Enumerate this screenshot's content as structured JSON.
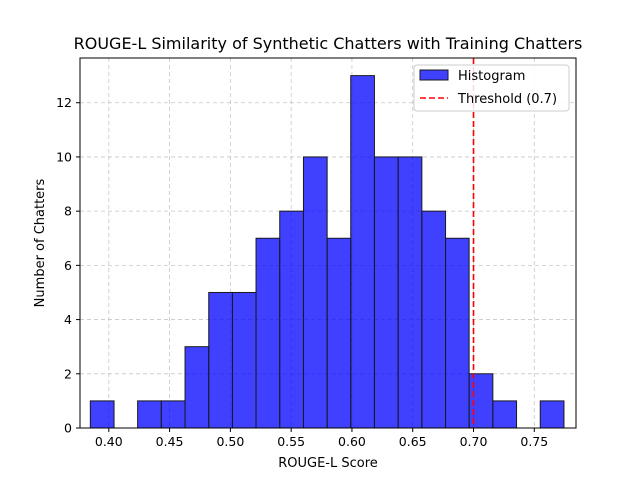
{
  "chart_data": {
    "type": "bar",
    "title": "ROUGE-L Similarity of Synthetic Chatters with Training Chatters",
    "xlabel": "ROUGE-L Score",
    "ylabel": "Number of Chatters",
    "xlim": [
      0.3763,
      0.7843
    ],
    "ylim": [
      0,
      13.65
    ],
    "grid": true,
    "legend_position": "top-right",
    "bar_color": "#0000ff",
    "bar_edge_color": "#1a1a1a",
    "threshold_color": "#ff0000",
    "x_ticks": [
      "0.40",
      "0.45",
      "0.50",
      "0.55",
      "0.60",
      "0.65",
      "0.70",
      "0.75"
    ],
    "x_tick_values": [
      0.4,
      0.45,
      0.5,
      0.55,
      0.6,
      0.65,
      0.7,
      0.75
    ],
    "y_ticks": [
      "0",
      "2",
      "4",
      "6",
      "8",
      "10",
      "12"
    ],
    "y_tick_values": [
      0,
      2,
      4,
      6,
      8,
      10,
      12
    ],
    "bins": [
      {
        "start": 0.3848,
        "end": 0.4043,
        "count": 1
      },
      {
        "start": 0.4043,
        "end": 0.4237,
        "count": 0
      },
      {
        "start": 0.4237,
        "end": 0.4432,
        "count": 1
      },
      {
        "start": 0.4432,
        "end": 0.4627,
        "count": 1
      },
      {
        "start": 0.4627,
        "end": 0.4822,
        "count": 3
      },
      {
        "start": 0.4822,
        "end": 0.5017,
        "count": 5
      },
      {
        "start": 0.5017,
        "end": 0.5211,
        "count": 5
      },
      {
        "start": 0.5211,
        "end": 0.5406,
        "count": 7
      },
      {
        "start": 0.5406,
        "end": 0.5601,
        "count": 8
      },
      {
        "start": 0.5601,
        "end": 0.5796,
        "count": 10
      },
      {
        "start": 0.5796,
        "end": 0.599,
        "count": 7
      },
      {
        "start": 0.599,
        "end": 0.6185,
        "count": 13
      },
      {
        "start": 0.6185,
        "end": 0.638,
        "count": 10
      },
      {
        "start": 0.638,
        "end": 0.6575,
        "count": 10
      },
      {
        "start": 0.6575,
        "end": 0.677,
        "count": 8
      },
      {
        "start": 0.677,
        "end": 0.6964,
        "count": 7
      },
      {
        "start": 0.6964,
        "end": 0.7159,
        "count": 2
      },
      {
        "start": 0.7159,
        "end": 0.7354,
        "count": 1
      },
      {
        "start": 0.7354,
        "end": 0.7549,
        "count": 0
      },
      {
        "start": 0.7549,
        "end": 0.7744,
        "count": 1
      }
    ],
    "threshold": {
      "value": 0.7,
      "label": "Threshold (0.7)"
    },
    "legend": [
      {
        "label": "Histogram",
        "kind": "bar"
      },
      {
        "label": "Threshold (0.7)",
        "kind": "dashed-line"
      }
    ]
  }
}
